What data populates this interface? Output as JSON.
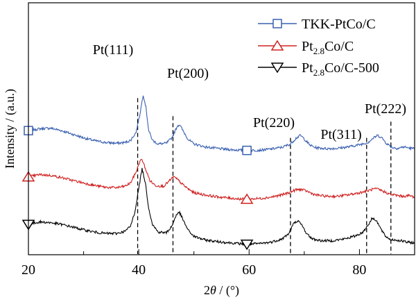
{
  "chart_data": {
    "type": "line",
    "xlabel_parts": [
      "2",
      "θ",
      " / (°)"
    ],
    "ylabel": "Intensity / (a.u.)",
    "xlim": [
      20,
      90
    ],
    "xticks": [
      20,
      40,
      60,
      80
    ],
    "xtick_labels": [
      "20",
      "40",
      "60",
      "80"
    ],
    "y_axis_ticks": false,
    "grid": false,
    "legend": {
      "placement": "top-right"
    },
    "series": [
      {
        "name_parts": [
          "TKK-PtCo/C",
          "",
          ""
        ],
        "color": "#3a60b0",
        "marker": "square",
        "marker_x": [
          20,
          59.6
        ],
        "offset": 2.6,
        "points": [
          [
            20,
            0.55
          ],
          [
            22,
            0.6
          ],
          [
            24,
            0.62
          ],
          [
            26,
            0.55
          ],
          [
            28,
            0.45
          ],
          [
            30,
            0.35
          ],
          [
            32,
            0.27
          ],
          [
            34,
            0.22
          ],
          [
            36,
            0.2
          ],
          [
            37.5,
            0.22
          ],
          [
            38.5,
            0.28
          ],
          [
            39.5,
            0.5
          ],
          [
            40.2,
            1.0
          ],
          [
            40.8,
            1.55
          ],
          [
            41.3,
            1.2
          ],
          [
            41.8,
            0.55
          ],
          [
            42.5,
            0.28
          ],
          [
            43.5,
            0.18
          ],
          [
            45,
            0.2
          ],
          [
            46,
            0.35
          ],
          [
            47,
            0.68
          ],
          [
            47.4,
            0.72
          ],
          [
            48,
            0.55
          ],
          [
            49,
            0.3
          ],
          [
            50,
            0.18
          ],
          [
            52,
            0.1
          ],
          [
            54,
            0.06
          ],
          [
            56,
            0.03
          ],
          [
            58,
            0.01
          ],
          [
            60,
            0.0
          ],
          [
            62,
            0.01
          ],
          [
            64,
            0.04
          ],
          [
            66,
            0.09
          ],
          [
            67.5,
            0.18
          ],
          [
            68.5,
            0.34
          ],
          [
            69.3,
            0.42
          ],
          [
            70,
            0.32
          ],
          [
            71,
            0.15
          ],
          [
            72,
            0.08
          ],
          [
            74,
            0.05
          ],
          [
            76,
            0.06
          ],
          [
            78,
            0.1
          ],
          [
            80,
            0.16
          ],
          [
            81.5,
            0.22
          ],
          [
            82.5,
            0.34
          ],
          [
            83.3,
            0.42
          ],
          [
            84,
            0.36
          ],
          [
            85,
            0.18
          ],
          [
            86,
            0.08
          ],
          [
            87,
            0.06
          ],
          [
            88,
            0.1
          ],
          [
            89,
            0.07
          ],
          [
            90,
            0.05
          ]
        ]
      },
      {
        "name_parts": [
          "Pt",
          "2.8",
          "Co/C"
        ],
        "color": "#d02020",
        "marker": "triangle-up",
        "marker_x": [
          20,
          59.6
        ],
        "offset": 1.25,
        "points": [
          [
            20,
            0.62
          ],
          [
            22,
            0.68
          ],
          [
            24,
            0.66
          ],
          [
            26,
            0.6
          ],
          [
            28,
            0.52
          ],
          [
            30,
            0.45
          ],
          [
            32,
            0.38
          ],
          [
            34,
            0.33
          ],
          [
            36,
            0.32
          ],
          [
            37.5,
            0.36
          ],
          [
            38.5,
            0.45
          ],
          [
            39.5,
            0.75
          ],
          [
            40.2,
            1.05
          ],
          [
            40.6,
            1.1
          ],
          [
            41.2,
            0.85
          ],
          [
            42,
            0.52
          ],
          [
            43,
            0.38
          ],
          [
            44.5,
            0.36
          ],
          [
            45.5,
            0.5
          ],
          [
            46.3,
            0.62
          ],
          [
            47,
            0.55
          ],
          [
            48,
            0.4
          ],
          [
            49,
            0.28
          ],
          [
            50,
            0.18
          ],
          [
            52,
            0.12
          ],
          [
            54,
            0.07
          ],
          [
            56,
            0.04
          ],
          [
            58,
            0.01
          ],
          [
            59.6,
            0.0
          ],
          [
            62,
            0.02
          ],
          [
            64,
            0.06
          ],
          [
            66,
            0.12
          ],
          [
            67.5,
            0.2
          ],
          [
            68.5,
            0.26
          ],
          [
            69.5,
            0.27
          ],
          [
            70.5,
            0.22
          ],
          [
            72,
            0.12
          ],
          [
            74,
            0.08
          ],
          [
            76,
            0.08
          ],
          [
            78,
            0.12
          ],
          [
            80,
            0.18
          ],
          [
            81.5,
            0.23
          ],
          [
            82.5,
            0.28
          ],
          [
            83.3,
            0.28
          ],
          [
            84.3,
            0.22
          ],
          [
            85.5,
            0.14
          ],
          [
            87,
            0.1
          ],
          [
            88,
            0.08
          ],
          [
            89,
            0.1
          ],
          [
            90,
            0.06
          ]
        ]
      },
      {
        "name_parts": [
          "Pt",
          "2.8",
          "Co/C-500"
        ],
        "color": "#000000",
        "marker": "triangle-down",
        "marker_x": [
          20,
          59.6
        ],
        "offset": 0.0,
        "points": [
          [
            20,
            0.55
          ],
          [
            22,
            0.62
          ],
          [
            24,
            0.6
          ],
          [
            26,
            0.55
          ],
          [
            28,
            0.48
          ],
          [
            30,
            0.4
          ],
          [
            32,
            0.34
          ],
          [
            34,
            0.3
          ],
          [
            36,
            0.3
          ],
          [
            37.5,
            0.36
          ],
          [
            38.5,
            0.5
          ],
          [
            39.3,
            0.9
          ],
          [
            40,
            1.55
          ],
          [
            40.6,
            2.1
          ],
          [
            41.2,
            1.7
          ],
          [
            41.8,
            1.0
          ],
          [
            42.5,
            0.55
          ],
          [
            43.5,
            0.34
          ],
          [
            45,
            0.32
          ],
          [
            46,
            0.5
          ],
          [
            46.8,
            0.82
          ],
          [
            47.4,
            0.88
          ],
          [
            48.2,
            0.62
          ],
          [
            49,
            0.38
          ],
          [
            50,
            0.22
          ],
          [
            52,
            0.12
          ],
          [
            54,
            0.08
          ],
          [
            56,
            0.05
          ],
          [
            58,
            0.02
          ],
          [
            59.6,
            0.0
          ],
          [
            62,
            0.02
          ],
          [
            64,
            0.06
          ],
          [
            66,
            0.15
          ],
          [
            67.2,
            0.3
          ],
          [
            68,
            0.56
          ],
          [
            68.8,
            0.66
          ],
          [
            69.6,
            0.52
          ],
          [
            70.5,
            0.28
          ],
          [
            71.5,
            0.15
          ],
          [
            73,
            0.1
          ],
          [
            75,
            0.1
          ],
          [
            77,
            0.14
          ],
          [
            79,
            0.22
          ],
          [
            80.5,
            0.32
          ],
          [
            81.5,
            0.52
          ],
          [
            82.3,
            0.72
          ],
          [
            83,
            0.68
          ],
          [
            83.8,
            0.45
          ],
          [
            84.6,
            0.24
          ],
          [
            85.5,
            0.14
          ],
          [
            86.5,
            0.12
          ],
          [
            87.5,
            0.1
          ],
          [
            88.5,
            0.06
          ],
          [
            90,
            0.04
          ]
        ]
      }
    ],
    "reference_lines": [
      {
        "label": "Pt(111)",
        "x": 39.8
      },
      {
        "label": "Pt(200)",
        "x": 46.2
      },
      {
        "label": "Pt(220)",
        "x": 67.5
      },
      {
        "label": "Pt(311)",
        "x": 81.3
      },
      {
        "label": "Pt(222)",
        "x": 85.7
      }
    ]
  }
}
